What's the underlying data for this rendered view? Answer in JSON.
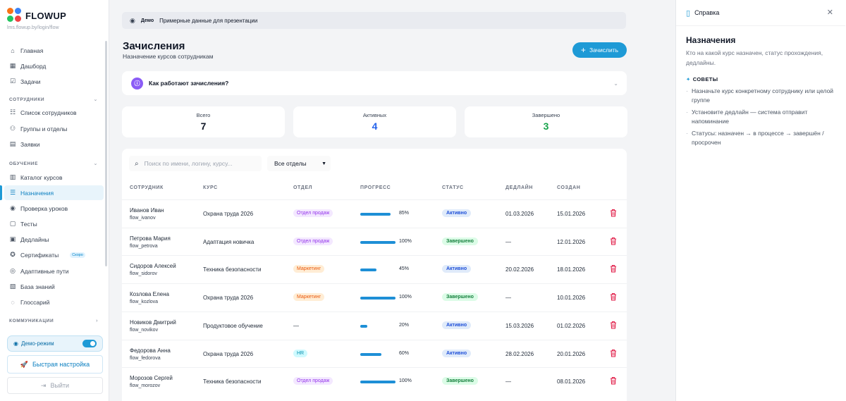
{
  "app": {
    "name": "FLOWUP",
    "url": "lms.flowup.by/login/flow"
  },
  "sidebar": {
    "items": [
      {
        "label": "Главная",
        "icon": "home-icon"
      },
      {
        "label": "Дашборд",
        "icon": "dashboard-icon"
      },
      {
        "label": "Задачи",
        "icon": "tasks-icon"
      },
      {
        "label": "Список сотрудников",
        "icon": "users-list-icon"
      },
      {
        "label": "Группы и отделы",
        "icon": "groups-icon"
      },
      {
        "label": "Заявки",
        "icon": "requests-icon"
      },
      {
        "label": "Каталог курсов",
        "icon": "catalog-icon"
      },
      {
        "label": "Назначения",
        "icon": "list-icon"
      },
      {
        "label": "Проверка уроков",
        "icon": "eye-icon"
      },
      {
        "label": "Тесты",
        "icon": "tests-icon"
      },
      {
        "label": "Дедлайны",
        "icon": "calendar-icon"
      },
      {
        "label": "Сертификаты",
        "icon": "certificate-icon",
        "badge": "Скоро"
      },
      {
        "label": "Адаптивные пути",
        "icon": "compass-icon"
      },
      {
        "label": "База знаний",
        "icon": "knowledge-icon"
      },
      {
        "label": "Глоссарий",
        "icon": "glossary-icon"
      }
    ],
    "sections": {
      "employees": "СОТРУДНИКИ",
      "learning": "ОБУЧЕНИЕ",
      "communications": "КОММУНИКАЦИИ"
    },
    "demo_mode": "Демо-режим",
    "quick_setup": "Быстрая настройка",
    "logout": "Выйти"
  },
  "banner": {
    "tag": "Демо",
    "text": "Примерные данные для презентации"
  },
  "page": {
    "title": "Зачисления",
    "subtitle": "Назначение курсов сотрудникам",
    "enroll_button": "Зачислить",
    "howto": "Как работают зачисления?"
  },
  "stats": {
    "total_label": "Всего",
    "total": "7",
    "active_label": "Активных",
    "active": "4",
    "done_label": "Завершено",
    "done": "3"
  },
  "colors": {
    "accent": "#1e9ad6",
    "active": "#2563eb",
    "done": "#16a34a",
    "danger": "#e11d48"
  },
  "filters": {
    "search_placeholder": "Поиск по имени, логину, курсу...",
    "department": "Все отделы"
  },
  "table": {
    "headers": [
      "СОТРУДНИК",
      "КУРС",
      "ОТДЕЛ",
      "ПРОГРЕСС",
      "СТАТУС",
      "ДЕДЛАЙН",
      "СОЗДАН"
    ],
    "rows": [
      {
        "name": "Иванов Иван",
        "login": "flow_ivanov",
        "course": "Охрана труда 2026",
        "dept": "Отдел продаж",
        "progress": 85,
        "progress_label": "85%",
        "status": "Активно",
        "status_type": "active",
        "deadline": "01.03.2026",
        "created": "15.01.2026"
      },
      {
        "name": "Петрова Мария",
        "login": "flow_petrova",
        "course": "Адаптация новичка",
        "dept": "Отдел продаж",
        "progress": 100,
        "progress_label": "100%",
        "status": "Завершено",
        "status_type": "done",
        "deadline": "—",
        "created": "12.01.2026"
      },
      {
        "name": "Сидоров Алексей",
        "login": "flow_sidorov",
        "course": "Техника безопасности",
        "dept": "Маркетинг",
        "progress": 45,
        "progress_label": "45%",
        "status": "Активно",
        "status_type": "active",
        "deadline": "20.02.2026",
        "created": "18.01.2026"
      },
      {
        "name": "Козлова Елена",
        "login": "flow_kozlova",
        "course": "Охрана труда 2026",
        "dept": "Маркетинг",
        "progress": 100,
        "progress_label": "100%",
        "status": "Завершено",
        "status_type": "done",
        "deadline": "—",
        "created": "10.01.2026"
      },
      {
        "name": "Новиков Дмитрий",
        "login": "flow_novikov",
        "course": "Продуктовое обучение",
        "dept": "—",
        "progress": 20,
        "progress_label": "20%",
        "status": "Активно",
        "status_type": "active",
        "deadline": "15.03.2026",
        "created": "01.02.2026"
      },
      {
        "name": "Федорова Анна",
        "login": "flow_fedorova",
        "course": "Охрана труда 2026",
        "dept": "HR",
        "progress": 60,
        "progress_label": "60%",
        "status": "Активно",
        "status_type": "active",
        "deadline": "28.02.2026",
        "created": "20.01.2026"
      },
      {
        "name": "Морозов Сергей",
        "login": "flow_morozov",
        "course": "Техника безопасности",
        "dept": "Отдел продаж",
        "progress": 100,
        "progress_label": "100%",
        "status": "Завершено",
        "status_type": "done",
        "deadline": "—",
        "created": "08.01.2026"
      }
    ]
  },
  "help": {
    "title": "Справка",
    "heading": "Назначения",
    "description": "Кто на какой курс назначен, статус прохождения, дедлайны.",
    "tips_title": "СОВЕТЫ",
    "tips": [
      "Назначьте курс конкретному сотруднику или целой группе",
      "Установите дедлайн — система отправит напоминание",
      "Статусы: назначен → в процессе → завершён / просрочен"
    ]
  }
}
